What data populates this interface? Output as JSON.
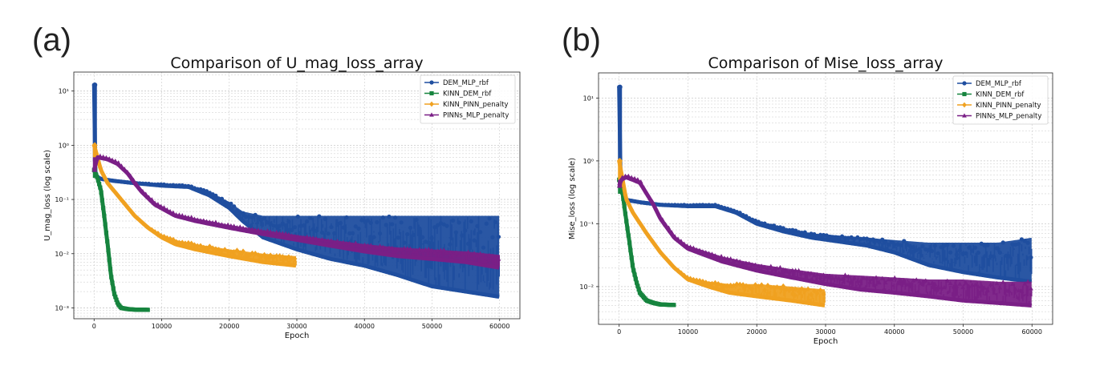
{
  "panels": [
    {
      "label": "(a)"
    },
    {
      "label": "(b)"
    }
  ],
  "chart_data": [
    {
      "type": "line",
      "title": "Comparison of U_mag_loss_array",
      "xlabel": "Epoch",
      "ylabel": "U_mag_loss (log scale)",
      "yscale": "log",
      "xlim": [
        -3000,
        63000
      ],
      "ylim_log10": [
        -3.2,
        1.35
      ],
      "xticks": [
        0,
        10000,
        20000,
        30000,
        40000,
        50000,
        60000
      ],
      "yticks": [
        {
          "value": 1,
          "label": "10¹"
        },
        {
          "value": 0,
          "label": "10⁰"
        },
        {
          "value": -1,
          "label": "10⁻¹"
        },
        {
          "value": -2,
          "label": "10⁻²"
        },
        {
          "value": -3,
          "label": "10⁻³"
        }
      ],
      "grid": true,
      "legend_position": "top-right",
      "series": [
        {
          "name": "DEM_MLP_rbf",
          "color": "#1f4e9f",
          "marker": "circle",
          "x": [
            0,
            100,
            200,
            500,
            1000,
            3000,
            6000,
            10000,
            14000,
            17000,
            20000,
            22000,
            25000,
            30000,
            35000,
            40000,
            45000,
            50000,
            55000,
            60000
          ],
          "y": [
            13,
            0.5,
            0.3,
            0.26,
            0.24,
            0.22,
            0.2,
            0.18,
            0.17,
            0.12,
            0.07,
            0.04,
            0.02,
            0.012,
            0.008,
            0.006,
            0.004,
            0.0025,
            0.002,
            0.0016
          ],
          "y_high": [
            13,
            0.5,
            0.3,
            0.26,
            0.24,
            0.22,
            0.2,
            0.19,
            0.18,
            0.14,
            0.09,
            0.06,
            0.05,
            0.05,
            0.05,
            0.05,
            0.05,
            0.05,
            0.05,
            0.05
          ]
        },
        {
          "name": "KINN_DEM_rbf",
          "color": "#16843e",
          "marker": "square",
          "x": [
            0,
            500,
            1000,
            1500,
            2000,
            2500,
            3000,
            3500,
            4000,
            5000,
            6000,
            8000
          ],
          "y": [
            0.35,
            0.25,
            0.15,
            0.05,
            0.015,
            0.004,
            0.0018,
            0.0012,
            0.001,
            0.00095,
            0.00093,
            0.00092
          ],
          "y_high": [
            0.35,
            0.25,
            0.15,
            0.05,
            0.015,
            0.004,
            0.0018,
            0.0012,
            0.001,
            0.00095,
            0.00093,
            0.00092
          ]
        },
        {
          "name": "KINN_PINN_penalty",
          "color": "#f0a120",
          "marker": "diamond",
          "x": [
            0,
            500,
            1000,
            2000,
            4000,
            6000,
            8000,
            10000,
            12000,
            15000,
            20000,
            25000,
            30000
          ],
          "y": [
            1.0,
            0.6,
            0.35,
            0.2,
            0.1,
            0.05,
            0.03,
            0.02,
            0.015,
            0.012,
            0.009,
            0.007,
            0.006
          ],
          "y_high": [
            1.0,
            0.6,
            0.35,
            0.2,
            0.1,
            0.05,
            0.03,
            0.022,
            0.018,
            0.015,
            0.012,
            0.01,
            0.009
          ]
        },
        {
          "name": "PINNs_MLP_penalty",
          "color": "#7a1f86",
          "marker": "triangle",
          "x": [
            0,
            500,
            2000,
            3500,
            5000,
            6000,
            7000,
            9000,
            12000,
            15000,
            20000,
            25000,
            30000,
            35000,
            40000,
            45000,
            50000,
            55000,
            60000
          ],
          "y": [
            0.35,
            0.6,
            0.55,
            0.45,
            0.3,
            0.2,
            0.14,
            0.08,
            0.05,
            0.04,
            0.03,
            0.023,
            0.018,
            0.014,
            0.011,
            0.009,
            0.008,
            0.007,
            0.0055
          ],
          "y_high": [
            0.35,
            0.65,
            0.6,
            0.5,
            0.32,
            0.22,
            0.15,
            0.09,
            0.055,
            0.045,
            0.034,
            0.027,
            0.022,
            0.018,
            0.015,
            0.013,
            0.012,
            0.011,
            0.0095
          ]
        }
      ]
    },
    {
      "type": "line",
      "title": "Comparison of Mise_loss_array",
      "xlabel": "Epoch",
      "ylabel": "Mise_loss (log scale)",
      "yscale": "log",
      "xlim": [
        -3000,
        63000
      ],
      "ylim_log10": [
        -2.6,
        1.4
      ],
      "xticks": [
        0,
        10000,
        20000,
        30000,
        40000,
        50000,
        60000
      ],
      "yticks": [
        {
          "value": 1,
          "label": "10¹"
        },
        {
          "value": 0,
          "label": "10⁰"
        },
        {
          "value": -1,
          "label": "10⁻¹"
        },
        {
          "value": -2,
          "label": "10⁻²"
        }
      ],
      "grid": true,
      "legend_position": "top-right",
      "series": [
        {
          "name": "DEM_MLP_rbf",
          "color": "#1f4e9f",
          "marker": "circle",
          "x": [
            0,
            100,
            300,
            700,
            1000,
            3000,
            6000,
            10000,
            14000,
            17000,
            20000,
            24000,
            28000,
            32000,
            36000,
            40000,
            45000,
            50000,
            55000,
            60000
          ],
          "y": [
            15,
            1.0,
            0.4,
            0.25,
            0.24,
            0.22,
            0.2,
            0.19,
            0.19,
            0.15,
            0.1,
            0.075,
            0.06,
            0.052,
            0.045,
            0.035,
            0.022,
            0.017,
            0.014,
            0.012
          ],
          "y_high": [
            15,
            1.0,
            0.4,
            0.25,
            0.24,
            0.22,
            0.2,
            0.2,
            0.2,
            0.16,
            0.11,
            0.085,
            0.07,
            0.065,
            0.06,
            0.055,
            0.05,
            0.05,
            0.05,
            0.06
          ]
        },
        {
          "name": "KINN_DEM_rbf",
          "color": "#16843e",
          "marker": "square",
          "x": [
            0,
            500,
            1000,
            1500,
            2000,
            2500,
            3000,
            4000,
            5000,
            6000,
            8000
          ],
          "y": [
            0.5,
            0.3,
            0.12,
            0.05,
            0.02,
            0.012,
            0.008,
            0.006,
            0.0055,
            0.0052,
            0.0051
          ],
          "y_high": [
            0.5,
            0.3,
            0.12,
            0.05,
            0.02,
            0.012,
            0.008,
            0.006,
            0.0055,
            0.0052,
            0.0051
          ]
        },
        {
          "name": "KINN_PINN_penalty",
          "color": "#f0a120",
          "marker": "diamond",
          "x": [
            0,
            500,
            1000,
            2000,
            4000,
            6000,
            8000,
            10000,
            13000,
            16000,
            20000,
            25000,
            30000
          ],
          "y": [
            1.0,
            0.5,
            0.25,
            0.15,
            0.07,
            0.035,
            0.02,
            0.013,
            0.01,
            0.008,
            0.007,
            0.006,
            0.005
          ],
          "y_high": [
            1.0,
            0.5,
            0.25,
            0.15,
            0.07,
            0.035,
            0.02,
            0.014,
            0.012,
            0.011,
            0.011,
            0.01,
            0.009
          ]
        },
        {
          "name": "PINNs_MLP_penalty",
          "color": "#7a1f86",
          "marker": "triangle",
          "x": [
            0,
            300,
            1000,
            3000,
            4000,
            5000,
            6000,
            8000,
            10000,
            15000,
            20000,
            25000,
            30000,
            35000,
            40000,
            45000,
            50000,
            55000,
            60000
          ],
          "y": [
            0.4,
            0.5,
            0.55,
            0.45,
            0.3,
            0.2,
            0.12,
            0.06,
            0.04,
            0.025,
            0.018,
            0.014,
            0.011,
            0.009,
            0.008,
            0.007,
            0.006,
            0.0055,
            0.005
          ],
          "y_high": [
            0.4,
            0.55,
            0.6,
            0.5,
            0.32,
            0.21,
            0.13,
            0.065,
            0.045,
            0.03,
            0.023,
            0.019,
            0.016,
            0.015,
            0.014,
            0.013,
            0.013,
            0.012,
            0.012
          ]
        }
      ]
    }
  ]
}
